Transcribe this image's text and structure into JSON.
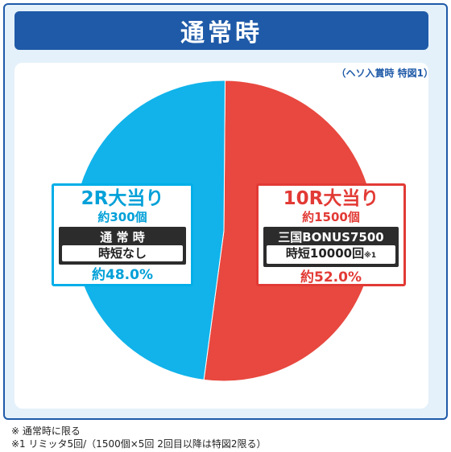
{
  "header": {
    "title": "通常時"
  },
  "caption": "（ヘソ入賞時 特図1）",
  "chart_data": {
    "type": "pie",
    "title": "通常時",
    "slices": [
      {
        "name": "10R大当り",
        "value": 52.0,
        "color": "#e8483f",
        "count_label": "約1500個",
        "detail_top": "三国BONUS7500",
        "detail_bottom": "時短10000回",
        "detail_note": "※1",
        "percent_label": "約52.0%"
      },
      {
        "name": "2R大当り",
        "value": 48.0,
        "color": "#11b3ea",
        "count_label": "約300個",
        "detail_top": "通 常 時",
        "detail_bottom": "時短なし",
        "percent_label": "約48.0%"
      }
    ]
  },
  "notes": [
    "※ 通常時に限る",
    "※1 リミッタ5回/（1500個×5回 2回目以降は特図2限る）"
  ]
}
